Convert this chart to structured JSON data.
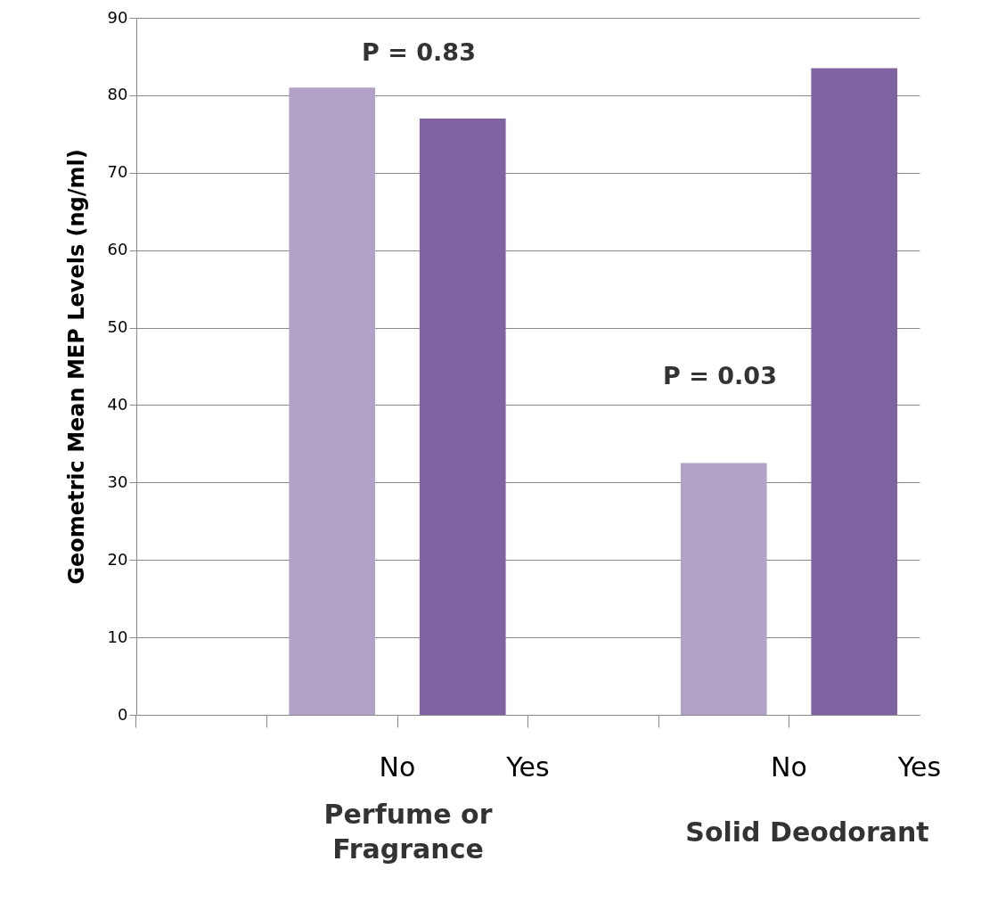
{
  "chart_data": {
    "type": "bar",
    "ylabel": "Geometric Mean MEP Levels (ng/ml)",
    "categories": [
      null,
      "No",
      "Yes",
      null,
      "No",
      "Yes"
    ],
    "values": [
      null,
      81,
      77,
      null,
      32.5,
      83.5
    ],
    "colors": [
      "#b3a2c7",
      "#b3a2c7",
      "#8064a2",
      "#8064a2",
      "#b3a2c7",
      "#8064a2"
    ],
    "ylim": [
      0,
      90
    ],
    "yticks": [
      0,
      10,
      20,
      30,
      40,
      50,
      60,
      70,
      80,
      90
    ],
    "grid": "y",
    "annotations": [
      "P = 0.83",
      "P = 0.03",
      "Perfume or Fragrance",
      "Solid Deodorant"
    ]
  }
}
